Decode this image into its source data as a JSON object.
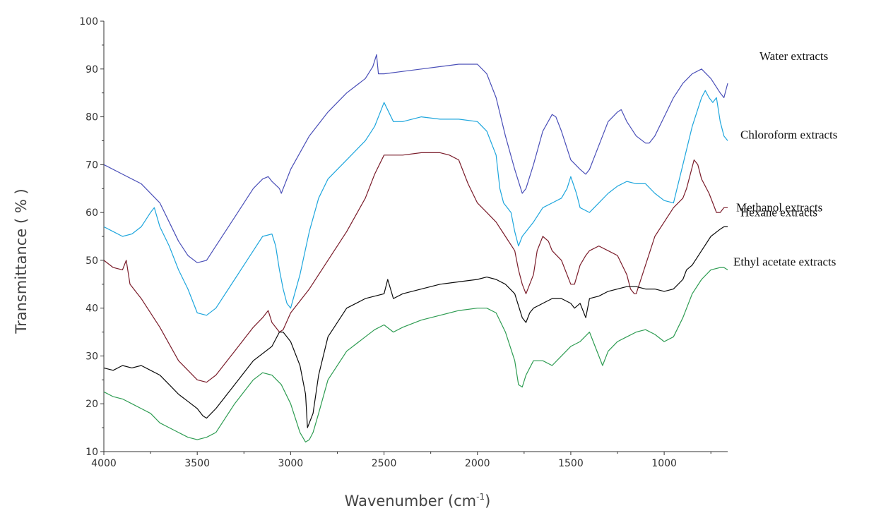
{
  "chart_data": {
    "type": "line",
    "xlabel": "Wavenumber (cm",
    "xlabel_sup": "-1",
    "xlabel_close": ")",
    "ylabel": "Transmittance ( % )",
    "xlim": [
      4000,
      660
    ],
    "ylim": [
      10,
      100
    ],
    "x_reversed": true,
    "xticks": [
      4000,
      3500,
      3000,
      2500,
      2000,
      1500,
      1000
    ],
    "xtick_labels": [
      "4000",
      "3500",
      "3000",
      "2500",
      "2000",
      "1500",
      "1000"
    ],
    "yticks": [
      10,
      20,
      30,
      40,
      50,
      60,
      70,
      80,
      90,
      100
    ],
    "ytick_labels": [
      "10",
      "20",
      "30",
      "40",
      "50",
      "60",
      "70",
      "80",
      "90",
      "100"
    ],
    "grid": false,
    "legend": "labels at right end of each series",
    "series": [
      {
        "name": "Water extracts",
        "color": "#4a4fb8",
        "x": [
          4000,
          3900,
          3800,
          3700,
          3650,
          3600,
          3550,
          3500,
          3450,
          3400,
          3300,
          3200,
          3150,
          3120,
          3100,
          3060,
          3050,
          3000,
          2900,
          2800,
          2700,
          2600,
          2560,
          2540,
          2530,
          2500,
          2400,
          2300,
          2200,
          2100,
          2000,
          1950,
          1900,
          1850,
          1800,
          1760,
          1740,
          1700,
          1650,
          1600,
          1580,
          1550,
          1500,
          1450,
          1420,
          1400,
          1350,
          1300,
          1250,
          1230,
          1200,
          1150,
          1100,
          1080,
          1050,
          1000,
          950,
          900,
          850,
          800,
          750,
          700,
          680,
          660
        ],
        "values": [
          70,
          68,
          66,
          62,
          58,
          54,
          51,
          49.5,
          50,
          53,
          59,
          65,
          67,
          67.5,
          66.5,
          65,
          64,
          69,
          76,
          81,
          85,
          88,
          90.5,
          93,
          89,
          89,
          89.5,
          90,
          90.5,
          91,
          91,
          89,
          84,
          76,
          69,
          64,
          65,
          70,
          77,
          80.5,
          80,
          77,
          71,
          69,
          68,
          69,
          74,
          79,
          81,
          81.5,
          79,
          76,
          74.5,
          74.5,
          76,
          80,
          84,
          87,
          89,
          90,
          88,
          85,
          84,
          87
        ]
      },
      {
        "name": "Chloroform extracts",
        "color": "#1ea6dd",
        "x": [
          4000,
          3950,
          3900,
          3850,
          3800,
          3750,
          3730,
          3700,
          3650,
          3600,
          3550,
          3500,
          3450,
          3400,
          3300,
          3200,
          3150,
          3100,
          3080,
          3060,
          3040,
          3020,
          3000,
          2950,
          2900,
          2850,
          2800,
          2700,
          2600,
          2550,
          2520,
          2500,
          2450,
          2400,
          2300,
          2200,
          2100,
          2000,
          1950,
          1900,
          1880,
          1860,
          1820,
          1800,
          1780,
          1760,
          1700,
          1650,
          1600,
          1550,
          1520,
          1500,
          1470,
          1450,
          1400,
          1350,
          1300,
          1250,
          1200,
          1150,
          1100,
          1050,
          1000,
          950,
          900,
          850,
          800,
          780,
          760,
          740,
          720,
          700,
          680,
          660
        ],
        "values": [
          57,
          56,
          55,
          55.5,
          57,
          60,
          61,
          57,
          53,
          48,
          44,
          39,
          38.5,
          40,
          46,
          52,
          55,
          55.5,
          53,
          48,
          44,
          41,
          40,
          47,
          56,
          63,
          67,
          71,
          75,
          78,
          81,
          83,
          79,
          79,
          80,
          79.5,
          79.5,
          79,
          77,
          72,
          65,
          62,
          60,
          56,
          53,
          55,
          58,
          61,
          62,
          63,
          65,
          67.5,
          64,
          61,
          60,
          62,
          64,
          65.5,
          66.5,
          66,
          66,
          64,
          62.5,
          62,
          70,
          78,
          84,
          85.5,
          84,
          83,
          84,
          79,
          76,
          75
        ]
      },
      {
        "name": "Methanol extracts",
        "color": "#7a1c2a",
        "x": [
          4000,
          3950,
          3900,
          3880,
          3860,
          3800,
          3700,
          3600,
          3500,
          3450,
          3400,
          3300,
          3200,
          3150,
          3120,
          3100,
          3080,
          3060,
          3040,
          3000,
          2900,
          2800,
          2700,
          2600,
          2550,
          2500,
          2400,
          2300,
          2200,
          2150,
          2100,
          2050,
          2000,
          1950,
          1900,
          1850,
          1800,
          1780,
          1760,
          1740,
          1700,
          1680,
          1650,
          1620,
          1600,
          1550,
          1520,
          1500,
          1480,
          1450,
          1420,
          1400,
          1350,
          1300,
          1250,
          1200,
          1180,
          1160,
          1150,
          1100,
          1050,
          1000,
          950,
          900,
          880,
          860,
          840,
          820,
          800,
          760,
          740,
          720,
          700,
          680,
          660
        ],
        "values": [
          50,
          48.5,
          48,
          50,
          45,
          42,
          36,
          29,
          25,
          24.5,
          26,
          31,
          36,
          38,
          39.5,
          37,
          36,
          35,
          35.5,
          39,
          44,
          50,
          56,
          63,
          68,
          72,
          72,
          72.5,
          72.5,
          72,
          71,
          66,
          62,
          60,
          58,
          55,
          52,
          48,
          45,
          43,
          47,
          52,
          55,
          54,
          52,
          50,
          47,
          45,
          45,
          49,
          51,
          52,
          53,
          52,
          51,
          47,
          44,
          43,
          43,
          49,
          55,
          58,
          61,
          63,
          65,
          68,
          71,
          70,
          67,
          64,
          62,
          60,
          60,
          61,
          61
        ]
      },
      {
        "name": "Hexane extracts",
        "color": "#0a0a0a",
        "x": [
          4000,
          3950,
          3900,
          3850,
          3800,
          3750,
          3700,
          3650,
          3600,
          3550,
          3500,
          3470,
          3450,
          3400,
          3300,
          3200,
          3100,
          3060,
          3040,
          3000,
          2950,
          2920,
          2910,
          2880,
          2850,
          2800,
          2700,
          2600,
          2500,
          2480,
          2450,
          2400,
          2300,
          2200,
          2100,
          2000,
          1950,
          1900,
          1850,
          1800,
          1760,
          1740,
          1720,
          1700,
          1650,
          1600,
          1550,
          1500,
          1480,
          1450,
          1420,
          1400,
          1350,
          1300,
          1250,
          1200,
          1150,
          1100,
          1050,
          1000,
          950,
          900,
          880,
          850,
          800,
          750,
          700,
          680,
          660
        ],
        "values": [
          27.5,
          27,
          28,
          27.5,
          28,
          27,
          26,
          24,
          22,
          20.5,
          19,
          17.5,
          17,
          19,
          24,
          29,
          32,
          35,
          35,
          33,
          28,
          22,
          15,
          18,
          26,
          34,
          40,
          42,
          43,
          46,
          42,
          43,
          44,
          45,
          45.5,
          46,
          46.5,
          46,
          45,
          43,
          38,
          37,
          39,
          40,
          41,
          42,
          42,
          41,
          40,
          41,
          38,
          42,
          42.5,
          43.5,
          44,
          44.5,
          44.5,
          44,
          44,
          43.5,
          44,
          46,
          48,
          49,
          52,
          55,
          56.5,
          57,
          57
        ]
      },
      {
        "name": "Ethyl acetate extracts",
        "color": "#2e9c52",
        "x": [
          4000,
          3950,
          3900,
          3850,
          3800,
          3750,
          3700,
          3650,
          3600,
          3550,
          3500,
          3450,
          3400,
          3300,
          3200,
          3150,
          3100,
          3050,
          3000,
          2950,
          2920,
          2900,
          2880,
          2850,
          2800,
          2700,
          2600,
          2550,
          2500,
          2450,
          2400,
          2300,
          2200,
          2100,
          2000,
          1950,
          1900,
          1850,
          1800,
          1780,
          1760,
          1740,
          1700,
          1650,
          1600,
          1550,
          1500,
          1450,
          1400,
          1350,
          1330,
          1300,
          1250,
          1200,
          1150,
          1100,
          1050,
          1000,
          950,
          900,
          850,
          800,
          750,
          700,
          680,
          660
        ],
        "values": [
          22.5,
          21.5,
          21,
          20,
          19,
          18,
          16,
          15,
          14,
          13,
          12.5,
          13,
          14,
          20,
          25,
          26.5,
          26,
          24,
          20,
          14,
          12,
          12.5,
          14,
          18,
          25,
          31,
          34,
          35.5,
          36.5,
          35,
          36,
          37.5,
          38.5,
          39.5,
          40,
          40,
          39,
          35,
          29,
          24,
          23.5,
          26,
          29,
          29,
          28,
          30,
          32,
          33,
          35,
          30,
          28,
          31,
          33,
          34,
          35,
          35.5,
          34.5,
          33,
          34,
          38,
          43,
          46,
          48,
          48.5,
          48.5,
          48
        ]
      }
    ]
  }
}
